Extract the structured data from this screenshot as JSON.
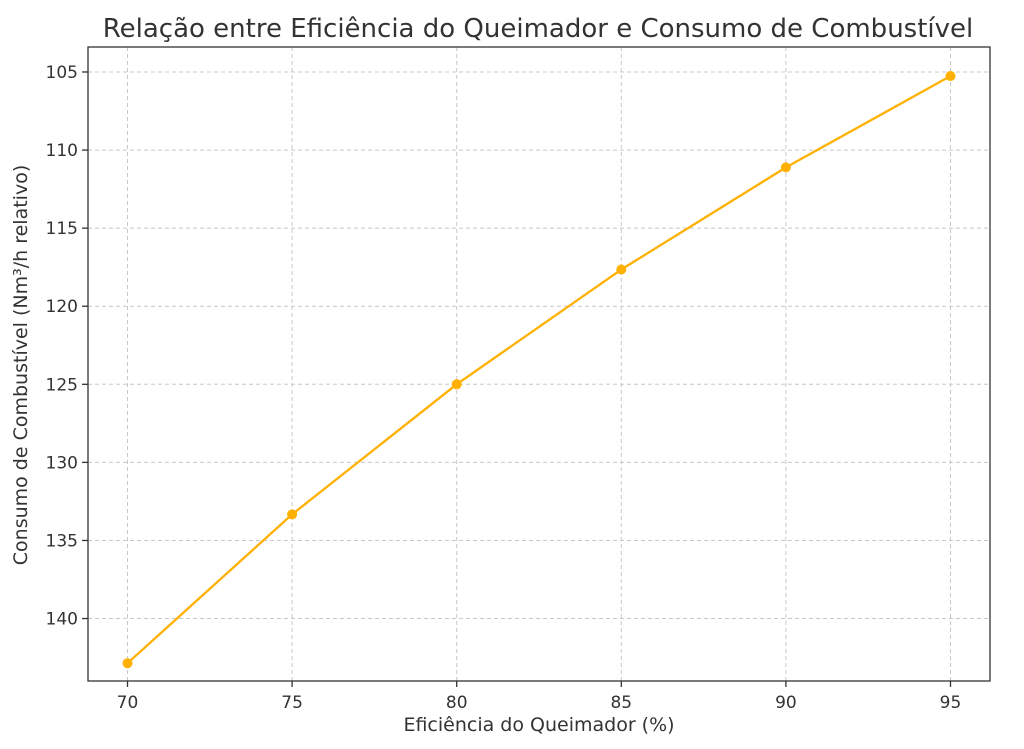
{
  "chart_data": {
    "type": "line",
    "title": "Relação entre Eficiência do Queimador e Consumo de Combustível",
    "xlabel": "Eficiência do Queimador (%)",
    "ylabel": "Consumo de Combustível (Nm³/h relativo)",
    "x": [
      70,
      75,
      80,
      85,
      90,
      95
    ],
    "series": [
      {
        "values": [
          142.86,
          133.33,
          125.0,
          117.65,
          111.11,
          105.26
        ]
      }
    ],
    "x_ticks": [
      70,
      75,
      80,
      85,
      90,
      95
    ],
    "y_ticks": [
      105,
      110,
      115,
      120,
      125,
      130,
      135,
      140
    ],
    "xlim": [
      68.8,
      96.2
    ],
    "ylim": [
      144.0,
      103.4
    ],
    "y_inverted": true,
    "grid": true,
    "line_color": "#FFB000",
    "marker": "circle"
  }
}
